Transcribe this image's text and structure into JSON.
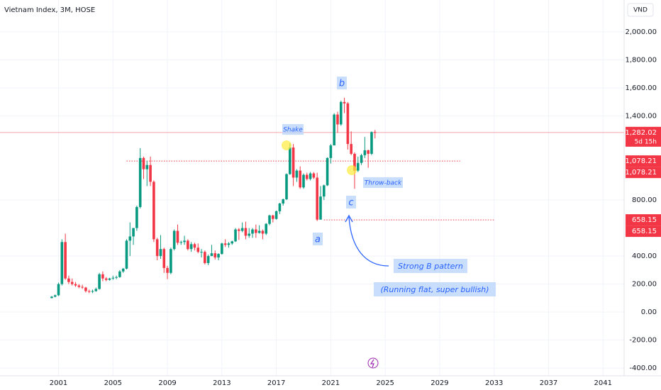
{
  "chart_data": {
    "type": "candlestick",
    "title": "Vietnam Index, 3M, HOSE",
    "currency": "VND",
    "x": [
      2000.5,
      2000.75,
      2001,
      2001.25,
      2001.5,
      2001.75,
      2002,
      2002.25,
      2002.5,
      2002.75,
      2003,
      2003.25,
      2003.5,
      2003.75,
      2004,
      2004.25,
      2004.5,
      2004.75,
      2005,
      2005.25,
      2005.5,
      2005.75,
      2006,
      2006.25,
      2006.5,
      2006.75,
      2007,
      2007.25,
      2007.5,
      2007.75,
      2008,
      2008.25,
      2008.5,
      2008.75,
      2009,
      2009.25,
      2009.5,
      2009.75,
      2010,
      2010.25,
      2010.5,
      2010.75,
      2011,
      2011.25,
      2011.5,
      2011.75,
      2012,
      2012.25,
      2012.5,
      2012.75,
      2013,
      2013.25,
      2013.5,
      2013.75,
      2014,
      2014.25,
      2014.5,
      2014.75,
      2015,
      2015.25,
      2015.5,
      2015.75,
      2016,
      2016.25,
      2016.5,
      2016.75,
      2017,
      2017.25,
      2017.5,
      2017.75,
      2018,
      2018.25,
      2018.5,
      2018.75,
      2019,
      2019.25,
      2019.5,
      2019.75,
      2020,
      2020.25,
      2020.5,
      2020.75,
      2021,
      2021.25,
      2021.5,
      2021.75,
      2022,
      2022.25,
      2022.5,
      2022.75,
      2023,
      2023.25,
      2023.5,
      2023.75,
      2024,
      2024.25
    ],
    "candles": [
      [
        100,
        115,
        98,
        110
      ],
      [
        110,
        125,
        105,
        120
      ],
      [
        120,
        210,
        115,
        200
      ],
      [
        200,
        520,
        190,
        500
      ],
      [
        500,
        560,
        230,
        240
      ],
      [
        240,
        260,
        200,
        215
      ],
      [
        215,
        240,
        190,
        200
      ],
      [
        200,
        215,
        180,
        190
      ],
      [
        190,
        200,
        170,
        180
      ],
      [
        180,
        195,
        165,
        175
      ],
      [
        175,
        180,
        140,
        150
      ],
      [
        150,
        160,
        135,
        145
      ],
      [
        145,
        160,
        135,
        150
      ],
      [
        150,
        175,
        145,
        165
      ],
      [
        165,
        280,
        160,
        270
      ],
      [
        270,
        290,
        220,
        240
      ],
      [
        240,
        250,
        220,
        230
      ],
      [
        230,
        245,
        225,
        240
      ],
      [
        240,
        260,
        230,
        245
      ],
      [
        245,
        260,
        235,
        250
      ],
      [
        250,
        300,
        245,
        290
      ],
      [
        290,
        315,
        280,
        310
      ],
      [
        310,
        520,
        305,
        510
      ],
      [
        510,
        640,
        400,
        540
      ],
      [
        540,
        600,
        480,
        600
      ],
      [
        600,
        760,
        580,
        750
      ],
      [
        750,
        1170,
        740,
        1100
      ],
      [
        1100,
        1110,
        950,
        1020
      ],
      [
        1020,
        1080,
        900,
        1050
      ],
      [
        1050,
        1110,
        900,
        930
      ],
      [
        930,
        940,
        500,
        520
      ],
      [
        520,
        530,
        370,
        400
      ],
      [
        400,
        550,
        380,
        450
      ],
      [
        450,
        460,
        280,
        315
      ],
      [
        315,
        330,
        235,
        280
      ],
      [
        280,
        460,
        270,
        450
      ],
      [
        450,
        590,
        440,
        580
      ],
      [
        580,
        625,
        480,
        495
      ],
      [
        495,
        510,
        480,
        500
      ],
      [
        500,
        545,
        480,
        510
      ],
      [
        510,
        520,
        440,
        450
      ],
      [
        450,
        500,
        430,
        485
      ],
      [
        485,
        495,
        440,
        460
      ],
      [
        460,
        490,
        420,
        430
      ],
      [
        430,
        450,
        390,
        430
      ],
      [
        430,
        440,
        340,
        350
      ],
      [
        350,
        410,
        335,
        400
      ],
      [
        400,
        480,
        400,
        420
      ],
      [
        420,
        440,
        375,
        390
      ],
      [
        390,
        420,
        370,
        415
      ],
      [
        415,
        495,
        410,
        490
      ],
      [
        490,
        520,
        465,
        480
      ],
      [
        480,
        500,
        460,
        490
      ],
      [
        490,
        510,
        480,
        505
      ],
      [
        505,
        600,
        500,
        590
      ],
      [
        590,
        600,
        515,
        580
      ],
      [
        580,
        640,
        570,
        600
      ],
      [
        600,
        645,
        520,
        545
      ],
      [
        545,
        600,
        530,
        560
      ],
      [
        560,
        600,
        530,
        590
      ],
      [
        590,
        625,
        530,
        565
      ],
      [
        565,
        620,
        560,
        580
      ],
      [
        580,
        590,
        520,
        560
      ],
      [
        560,
        635,
        550,
        630
      ],
      [
        630,
        695,
        620,
        690
      ],
      [
        690,
        695,
        640,
        665
      ],
      [
        665,
        725,
        660,
        720
      ],
      [
        720,
        780,
        700,
        775
      ],
      [
        775,
        810,
        760,
        805
      ],
      [
        805,
        990,
        800,
        985
      ],
      [
        985,
        1205,
        980,
        1175
      ],
      [
        1175,
        1200,
        900,
        960
      ],
      [
        960,
        1020,
        930,
        1010
      ],
      [
        1010,
        1040,
        880,
        890
      ],
      [
        890,
        990,
        880,
        980
      ],
      [
        980,
        995,
        940,
        950
      ],
      [
        950,
        1000,
        940,
        990
      ],
      [
        990,
        1000,
        950,
        960
      ],
      [
        960,
        995,
        650,
        660
      ],
      [
        660,
        900,
        660,
        825
      ],
      [
        825,
        910,
        800,
        905
      ],
      [
        905,
        1105,
        900,
        1100
      ],
      [
        1100,
        1200,
        1060,
        1190
      ],
      [
        1190,
        1420,
        1190,
        1410
      ],
      [
        1410,
        1430,
        1280,
        1340
      ],
      [
        1340,
        1510,
        1330,
        1500
      ],
      [
        1500,
        1530,
        1420,
        1490
      ],
      [
        1490,
        1500,
        1160,
        1200
      ],
      [
        1200,
        1290,
        1120,
        1130
      ],
      [
        1130,
        1140,
        880,
        1010
      ],
      [
        1010,
        1110,
        1000,
        1065
      ],
      [
        1065,
        1130,
        1050,
        1120
      ],
      [
        1120,
        1250,
        1100,
        1155
      ],
      [
        1155,
        1160,
        1030,
        1130
      ],
      [
        1130,
        1290,
        1120,
        1285
      ],
      [
        1285,
        1300,
        1240,
        1282.02
      ]
    ],
    "up_color": "#089981",
    "down_color": "#f23645",
    "xlim": [
      1996.7,
      2042.55
    ],
    "xticks": [
      2001,
      2005,
      2009,
      2013,
      2017,
      2021,
      2025,
      2029,
      2033,
      2037,
      2041
    ],
    "ylim": [
      -455,
      2228
    ],
    "yticks": [
      {
        "value": 2000,
        "label": "2,000.00"
      },
      {
        "value": 1800,
        "label": "1,800.00"
      },
      {
        "value": 1600,
        "label": "1,600.00"
      },
      {
        "value": 1400,
        "label": "1,400.00"
      },
      {
        "value": 800,
        "label": "800.00"
      },
      {
        "value": 400,
        "label": "400.00"
      },
      {
        "value": 200,
        "label": "200.00"
      },
      {
        "value": 0,
        "label": "0.00"
      },
      {
        "value": -200,
        "label": "-200.00"
      },
      {
        "value": -400,
        "label": "-400.00"
      }
    ],
    "grid": true,
    "current_price": {
      "value": 1282.02,
      "label": "1,282.02",
      "countdown": "5d 15h",
      "color": "#f23645"
    },
    "price_labels": [
      {
        "value": 1078.21,
        "label": "1,078.21"
      },
      {
        "value": 1078.21,
        "label": "1,078.21"
      },
      {
        "value": 658.15,
        "label": "658.15"
      },
      {
        "value": 658.15,
        "label": "658.15"
      }
    ],
    "levels": [
      {
        "value": 1078.21,
        "x_range": [
          2006,
          2030.5
        ]
      },
      {
        "value": 658.15,
        "x_range": [
          2020.5,
          2033
        ]
      }
    ],
    "annotations": [
      "Shake",
      "b",
      "a",
      "c",
      "Throw-back",
      "Strong B pattern",
      "(Running flat, super bullish)"
    ]
  }
}
